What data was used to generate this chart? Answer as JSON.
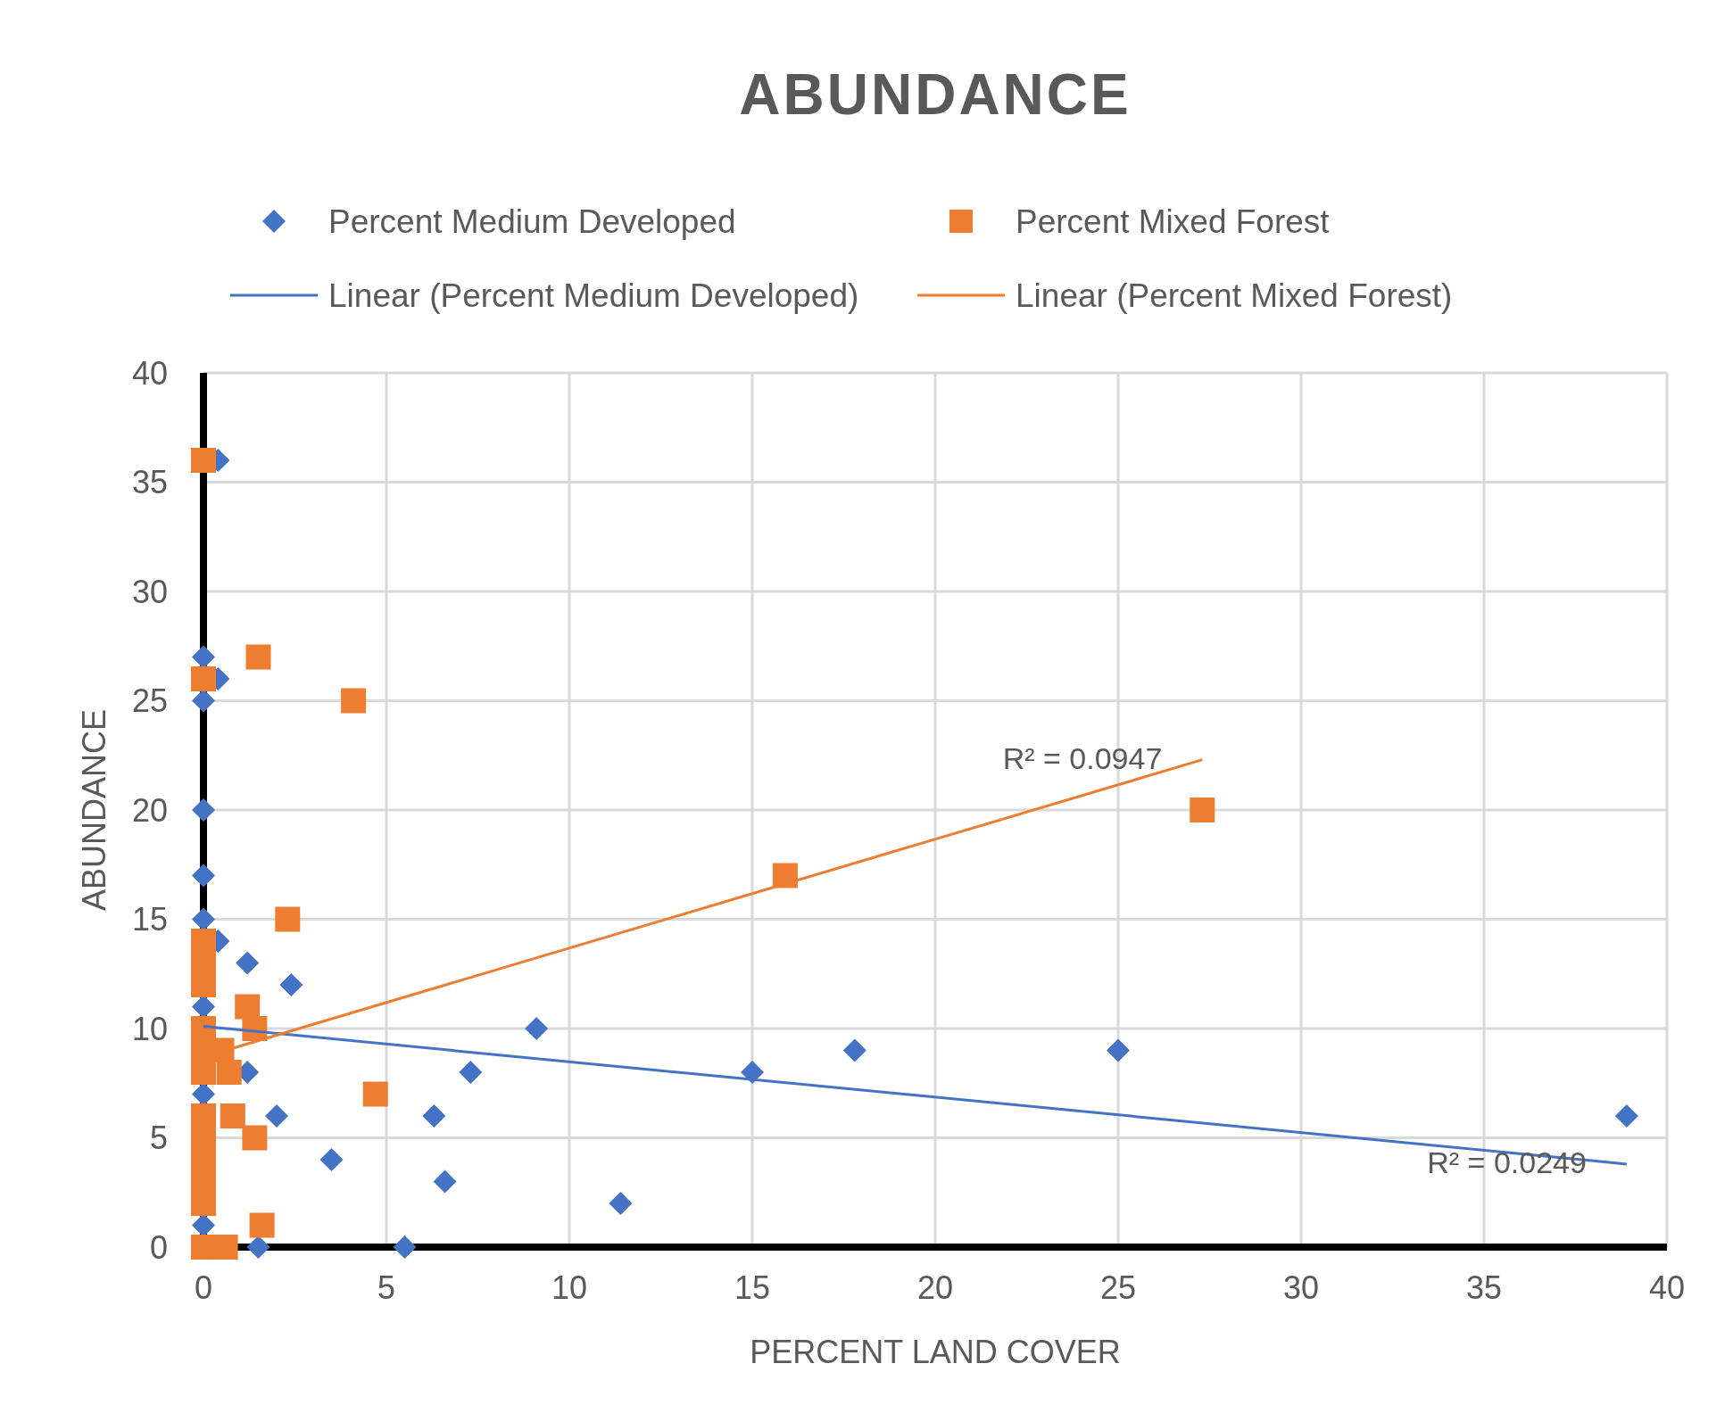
{
  "chart_data": {
    "type": "scatter",
    "title": "ABUNDANCE",
    "xlabel": "PERCENT LAND COVER",
    "ylabel": "ABUNDANCE",
    "xlim": [
      0,
      40
    ],
    "ylim": [
      0,
      40
    ],
    "xticks": [
      0,
      5,
      10,
      15,
      20,
      25,
      30,
      35,
      40
    ],
    "yticks": [
      0,
      5,
      10,
      15,
      20,
      25,
      30,
      35,
      40
    ],
    "grid": true,
    "legend": "top",
    "series": [
      {
        "name": "Percent Medium Developed",
        "marker": "diamond",
        "color": "#4472c4",
        "x": [
          0.4,
          0,
          0.4,
          0,
          0,
          0,
          0,
          0.4,
          1.2,
          2.4,
          0,
          9.1,
          1.2,
          7.3,
          15,
          17.8,
          25,
          38.9,
          2,
          6.3,
          3.5,
          6.6,
          11.4,
          5.5,
          1.5,
          0,
          0
        ],
        "values": [
          36,
          27,
          26,
          25,
          20,
          17,
          15,
          14,
          13,
          12,
          11,
          10,
          8,
          8,
          8,
          9,
          9,
          6,
          6,
          6,
          4,
          3,
          2,
          0,
          0,
          1,
          7
        ]
      },
      {
        "name": "Percent Mixed Forest",
        "marker": "square",
        "color": "#ed7d31",
        "x": [
          0,
          1.5,
          0,
          4.1,
          2.3,
          0,
          0,
          0,
          1.2,
          1.4,
          0,
          0.5,
          0,
          0.7,
          0,
          4.7,
          0.8,
          0,
          0,
          1.4,
          0,
          0,
          0,
          1.6,
          0,
          0.6,
          15.9,
          27.3
        ],
        "values": [
          36,
          27,
          26,
          25,
          15,
          14,
          13,
          12,
          11,
          10,
          10,
          9,
          9,
          8,
          8,
          7,
          6,
          6,
          5,
          5,
          4,
          3,
          2,
          1,
          0,
          0,
          17,
          20
        ]
      },
      {
        "name": "Linear (Percent Medium Developed)",
        "type": "line",
        "marker": "none",
        "line_style": "solid",
        "color": "#4472c4",
        "x": [
          0,
          38.9
        ],
        "values": [
          10.1,
          3.8
        ]
      },
      {
        "name": "Linear (Percent Mixed Forest)",
        "type": "line",
        "marker": "none",
        "line_style": "solid",
        "color": "#ed7d31",
        "x": [
          0,
          27.3
        ],
        "values": [
          8.7,
          22.3
        ]
      }
    ],
    "annotations": [
      {
        "text": "R² = 0.0947",
        "x": 27.3,
        "y": 22.3
      },
      {
        "text": "R² = 0.0249",
        "x": 38.9,
        "y": 3.8
      }
    ]
  }
}
